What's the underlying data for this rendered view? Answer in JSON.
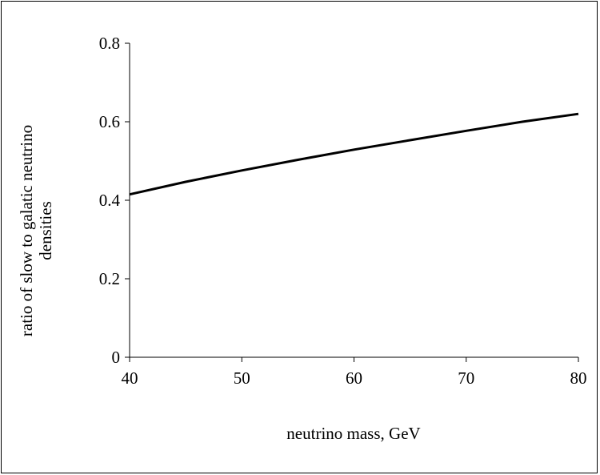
{
  "chart_data": {
    "type": "line",
    "title": "",
    "xlabel": "neutrino mass, GeV",
    "ylabel_lines": [
      "ratio of slow to galatic neutrino",
      "densities"
    ],
    "xlim": [
      40,
      80
    ],
    "ylim": [
      0,
      0.8
    ],
    "x_ticks": [
      40,
      50,
      60,
      70,
      80
    ],
    "x_tick_labels": [
      "40",
      "50",
      "60",
      "70",
      "80"
    ],
    "y_ticks": [
      0,
      0.2,
      0.4,
      0.6,
      0.8
    ],
    "y_tick_labels": [
      "0",
      "0.2",
      "0.4",
      "0.6",
      "0.8"
    ],
    "grid": false,
    "series": [
      {
        "x": [
          40,
          45,
          50,
          55,
          60,
          65,
          70,
          75,
          80
        ],
        "values": [
          0.415,
          0.447,
          0.476,
          0.503,
          0.529,
          0.553,
          0.577,
          0.6,
          0.62
        ],
        "color": "#000000"
      }
    ]
  }
}
